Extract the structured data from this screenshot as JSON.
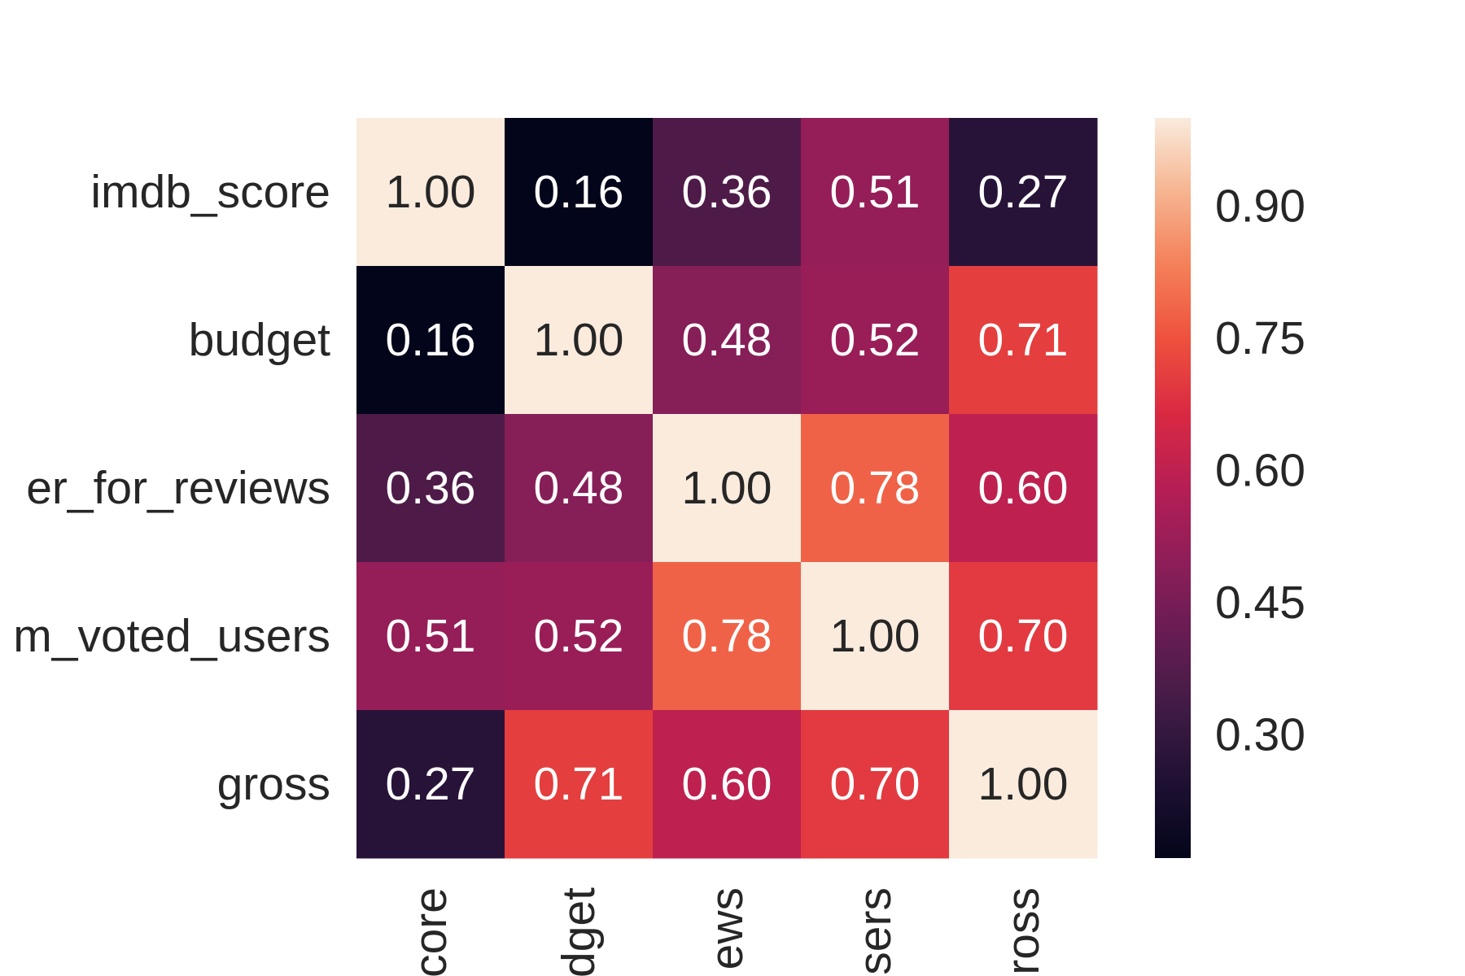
{
  "chart_data": {
    "type": "heatmap",
    "title": "",
    "xlabel": "",
    "ylabel": "",
    "rows": [
      "imdb_score",
      "budget",
      "num_critic_for_reviews",
      "num_voted_users",
      "gross"
    ],
    "columns": [
      "imdb_score",
      "budget",
      "num_critic_for_reviews",
      "num_voted_users",
      "gross"
    ],
    "visible_row_labels": [
      "imdb_score",
      "budget",
      "er_for_reviews",
      "m_voted_users",
      "gross"
    ],
    "visible_column_labels": [
      "core",
      "dget",
      "ews",
      "sers",
      "ross"
    ],
    "values": [
      [
        1.0,
        0.16,
        0.36,
        0.51,
        0.27
      ],
      [
        0.16,
        1.0,
        0.48,
        0.52,
        0.71
      ],
      [
        0.36,
        0.48,
        1.0,
        0.78,
        0.6
      ],
      [
        0.51,
        0.52,
        0.78,
        1.0,
        0.7
      ],
      [
        0.27,
        0.71,
        0.6,
        0.7,
        1.0
      ]
    ],
    "annotation_format": "0.00",
    "colormap": "rocket",
    "colorbar": {
      "min": 0.16,
      "max": 1.0,
      "ticks": [
        0.3,
        0.45,
        0.6,
        0.75,
        0.9
      ],
      "tick_labels": [
        "0.30",
        "0.45",
        "0.60",
        "0.75",
        "0.90"
      ],
      "placement": "right"
    },
    "text_color_dark": "#262626",
    "text_color_light": "#ffffff"
  }
}
